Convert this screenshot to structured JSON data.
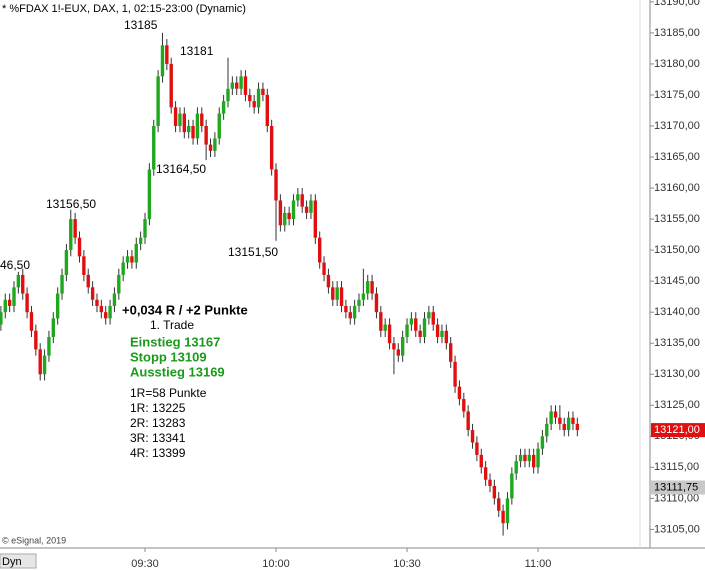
{
  "chart_data": {
    "type": "candlestick",
    "title": "* %FDAX 1!-EUX, DAX, 1, 02:15-23:00 (Dynamic)",
    "footer": "© eSignal, 2019",
    "mode_label": "Dyn",
    "up_color": "#1fa81f",
    "down_color": "#e01010",
    "categories": [
      null,
      null,
      null,
      null,
      null,
      null,
      null,
      null,
      null,
      null,
      null,
      null,
      null,
      null,
      null,
      null,
      null,
      null,
      null,
      null,
      null,
      null,
      null,
      null,
      null,
      null,
      null,
      null,
      null,
      null,
      null,
      null,
      null,
      "09:30",
      null,
      null,
      null,
      null,
      null,
      null,
      null,
      null,
      null,
      null,
      null,
      null,
      null,
      null,
      null,
      null,
      null,
      null,
      null,
      null,
      null,
      null,
      null,
      null,
      null,
      null,
      null,
      null,
      null,
      "10:00",
      null,
      null,
      null,
      null,
      null,
      null,
      null,
      null,
      null,
      null,
      null,
      null,
      null,
      null,
      null,
      null,
      null,
      null,
      null,
      null,
      null,
      null,
      null,
      null,
      null,
      null,
      null,
      null,
      null,
      "10:30",
      null,
      null,
      null,
      null,
      null,
      null,
      null,
      null,
      null,
      null,
      null,
      null,
      null,
      null,
      null,
      null,
      null,
      null,
      null,
      null,
      null,
      null,
      null,
      null,
      null,
      null,
      null,
      null,
      null,
      "11:00",
      null,
      null,
      null,
      null,
      null,
      null,
      null,
      null,
      null
    ],
    "open": [
      13138,
      13140,
      13142,
      13141,
      13144,
      13146,
      13143,
      13140,
      13137,
      13134,
      13130,
      13133,
      13136,
      13139,
      13143,
      13146,
      13150,
      13155,
      13152,
      13149,
      13146,
      13144,
      13142,
      13141,
      13140,
      13139,
      13141,
      13143,
      13146,
      13148,
      13149,
      13148,
      13151,
      13152,
      13155,
      13163,
      13170,
      13178,
      13183,
      13180,
      13173,
      13170,
      13172,
      13169,
      13170,
      13168,
      13172,
      13170,
      13167,
      13166,
      13168,
      13172,
      13174,
      13176,
      13177,
      13176,
      13178,
      13175,
      13174,
      13173,
      13176,
      13175,
      13170,
      13163,
      13158,
      13154,
      13156,
      13155,
      13158,
      13159,
      13157,
      13156,
      13158,
      13152,
      13148,
      13146,
      13144,
      13142,
      13144,
      13141,
      13140,
      13139,
      13141,
      13142,
      13143,
      13145,
      13143,
      13140,
      13137,
      13138,
      13135,
      13134,
      13133,
      13136,
      13138,
      13139,
      13137,
      13136,
      13139,
      13140,
      13138,
      13136,
      13137,
      13135,
      13132,
      13128,
      13126,
      13124,
      13121,
      13119,
      13117,
      13115,
      13113,
      13112,
      13110,
      13108,
      13106,
      13110,
      13114,
      13116,
      13117,
      13116,
      13117,
      13115,
      13118,
      13120,
      13122,
      13124,
      13123,
      13122,
      13121,
      13123,
      13122
    ],
    "high": [
      13141,
      13143,
      13143,
      13145,
      13146.5,
      13147,
      13144,
      13141,
      13138,
      13135,
      13134,
      13137,
      13140,
      13144,
      13147,
      13151,
      13156.5,
      13156,
      13153,
      13150,
      13147,
      13145,
      13143,
      13142,
      13141,
      13142,
      13144,
      13147,
      13149,
      13150,
      13150,
      13152,
      13153,
      13156,
      13164,
      13171,
      13179,
      13185,
      13184,
      13181,
      13174,
      13173,
      13173,
      13171,
      13171,
      13173,
      13173,
      13171,
      13168,
      13169,
      13173,
      13175,
      13181,
      13178,
      13178,
      13179,
      13179,
      13176,
      13175,
      13177,
      13177,
      13176,
      13171,
      13164,
      13159,
      13157,
      13157,
      13159,
      13160,
      13160,
      13158,
      13159,
      13159,
      13153,
      13149,
      13147,
      13145,
      13145,
      13145,
      13142,
      13141,
      13142,
      13143,
      13147,
      13146,
      13146,
      13144,
      13141,
      13139,
      13139,
      13136,
      13135,
      13137,
      13139,
      13140,
      13140,
      13138,
      13140,
      13141,
      13141,
      13139,
      13138,
      13138,
      13136,
      13133,
      13129,
      13127,
      13125,
      13122,
      13120,
      13118,
      13116,
      13114,
      13113,
      13111,
      13109,
      13111,
      13115,
      13117,
      13118,
      13118,
      13118,
      13118,
      13119,
      13121,
      13123,
      13125,
      13125,
      13125,
      13123,
      13124,
      13124,
      13123
    ],
    "low": [
      13137,
      13139,
      13140,
      13140,
      13143,
      13142,
      13139,
      13136,
      13133,
      13129,
      13129,
      13132,
      13135,
      13138,
      13142,
      13145,
      13149,
      13151,
      13148,
      13145,
      13143,
      13141,
      13140,
      13139,
      13138,
      13138,
      13140,
      13142,
      13145,
      13147,
      13147,
      13147,
      13150,
      13151,
      13154,
      13162,
      13169,
      13177,
      13179,
      13172,
      13169,
      13169,
      13168,
      13168,
      13167,
      13167,
      13169,
      13164.5,
      13165,
      13165,
      13167,
      13171,
      13173,
      13175,
      13175,
      13175,
      13174,
      13173,
      13172,
      13172,
      13174,
      13169,
      13162,
      13151.5,
      13153,
      13153,
      13154,
      13154,
      13157,
      13156,
      13155,
      13155,
      13151,
      13147,
      13145,
      13143,
      13141,
      13141,
      13140,
      13139,
      13138,
      13138,
      13140,
      13141,
      13142,
      13142,
      13139,
      13136,
      13136,
      13134,
      13130,
      13132,
      13132,
      13135,
      13137,
      13136,
      13135,
      13135,
      13138,
      13137,
      13135,
      13135,
      13134,
      13131,
      13127,
      13125,
      13123,
      13120,
      13118,
      13116,
      13114,
      13112,
      13111,
      13109,
      13107,
      13104,
      13105,
      13109,
      13113,
      13115,
      13115,
      13115,
      13114,
      13114,
      13117,
      13119,
      13121,
      13122,
      13121,
      13120,
      13120,
      13121,
      13120
    ],
    "close": [
      13140,
      13142,
      13141,
      13144,
      13146,
      13143,
      13140,
      13137,
      13134,
      13130,
      13133,
      13136,
      13139,
      13143,
      13146,
      13150,
      13155,
      13152,
      13149,
      13146,
      13144,
      13142,
      13141,
      13140,
      13139,
      13141,
      13143,
      13146,
      13148,
      13149,
      13148,
      13151,
      13152,
      13155,
      13163,
      13170,
      13178,
      13183,
      13180,
      13173,
      13170,
      13172,
      13169,
      13170,
      13168,
      13172,
      13170,
      13167,
      13166,
      13168,
      13172,
      13174,
      13176,
      13177,
      13176,
      13178,
      13175,
      13174,
      13173,
      13176,
      13175,
      13170,
      13163,
      13158,
      13154,
      13156,
      13155,
      13158,
      13159,
      13157,
      13156,
      13158,
      13152,
      13148,
      13146,
      13144,
      13142,
      13144,
      13141,
      13140,
      13139,
      13141,
      13142,
      13143,
      13145,
      13143,
      13140,
      13137,
      13138,
      13135,
      13134,
      13133,
      13136,
      13138,
      13139,
      13137,
      13136,
      13139,
      13140,
      13138,
      13136,
      13137,
      13135,
      13132,
      13128,
      13126,
      13124,
      13121,
      13119,
      13117,
      13115,
      13113,
      13112,
      13110,
      13108,
      13106,
      13110,
      13114,
      13116,
      13117,
      13116,
      13117,
      13115,
      13118,
      13120,
      13122,
      13124,
      13123,
      13122,
      13121,
      13123,
      13122,
      13121
    ],
    "ylim": [
      13102,
      13190.3
    ],
    "yticks": [
      {
        "value": 13105,
        "label": "13105,00"
      },
      {
        "value": 13110,
        "label": "13110,00"
      },
      {
        "value": 13115,
        "label": "13115,00"
      },
      {
        "value": 13120,
        "label": "13120,00"
      },
      {
        "value": 13125,
        "label": "13125,00"
      },
      {
        "value": 13130,
        "label": "13130,00"
      },
      {
        "value": 13135,
        "label": "13135,00"
      },
      {
        "value": 13140,
        "label": "13140,00"
      },
      {
        "value": 13145,
        "label": "13145,00"
      },
      {
        "value": 13150,
        "label": "13150,00"
      },
      {
        "value": 13155,
        "label": "13155,00"
      },
      {
        "value": 13160,
        "label": "13160,00"
      },
      {
        "value": 13165,
        "label": "13165,00"
      },
      {
        "value": 13170,
        "label": "13170,00"
      },
      {
        "value": 13175,
        "label": "13175,00"
      },
      {
        "value": 13180,
        "label": "13180,00"
      },
      {
        "value": 13185,
        "label": "13185,00"
      },
      {
        "value": 13190,
        "label": "13190,00"
      }
    ],
    "price_markers": [
      {
        "value": 13121,
        "label": "13121,00",
        "color": "#e01010"
      },
      {
        "value": 13111.75,
        "label": "13111,75",
        "color": "#c8c8c8"
      }
    ],
    "annotations": [
      "46,50",
      "13156,50",
      "13185",
      "13181",
      "13164,50",
      "13151,50"
    ],
    "trade_box": {
      "headline": "+0,034 R / +2 Punkte",
      "subline": "1. Trade",
      "signals": [
        "Einstieg 13167",
        "Stopp 13109",
        "Ausstieg 13169"
      ],
      "signal_color": "#1a9a1a",
      "targets": [
        "1R=58 Punkte",
        "1R: 13225",
        "2R: 13283",
        "3R: 13341",
        "4R: 13399"
      ]
    }
  }
}
